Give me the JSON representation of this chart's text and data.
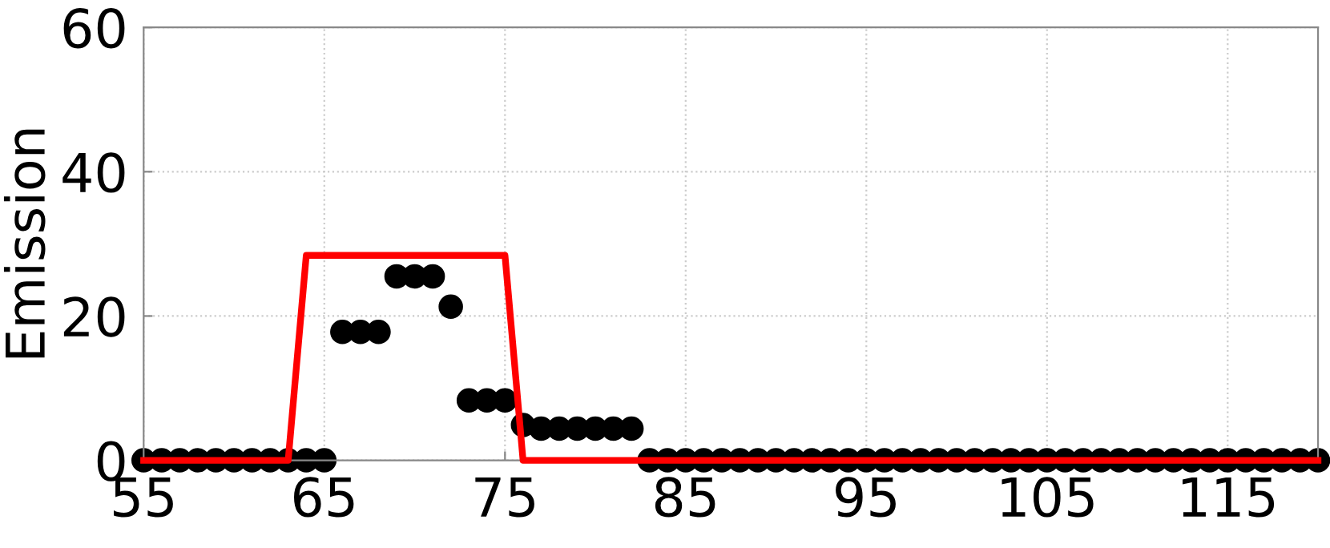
{
  "chart_data": {
    "type": "scatter",
    "ylabel": "Emission",
    "xlim": [
      55,
      120
    ],
    "ylim": [
      0,
      60
    ],
    "xticks": [
      55,
      65,
      75,
      85,
      95,
      105,
      115
    ],
    "yticks": [
      0,
      20,
      40,
      60
    ],
    "grid": true,
    "series": [
      {
        "color": "#000000",
        "marker": "circle",
        "x": [
          55,
          56,
          57,
          58,
          59,
          60,
          61,
          62,
          63,
          64,
          65,
          66,
          67,
          68,
          69,
          70,
          71,
          72,
          73,
          74,
          75,
          76,
          77,
          78,
          79,
          80,
          81,
          82,
          83,
          84,
          85,
          86,
          87,
          88,
          89,
          90,
          91,
          92,
          93,
          94,
          95,
          96,
          97,
          98,
          99,
          100,
          101,
          102,
          103,
          104,
          105,
          106,
          107,
          108,
          109,
          110,
          111,
          112,
          113,
          114,
          115,
          116,
          117,
          118,
          119,
          120
        ],
        "values": [
          0,
          0,
          0,
          0,
          0,
          0,
          0,
          0,
          0,
          0,
          0,
          17.8,
          17.8,
          17.8,
          25.5,
          25.5,
          25.5,
          21.3,
          8.3,
          8.3,
          8.3,
          4.9,
          4.4,
          4.4,
          4.4,
          4.4,
          4.4,
          4.4,
          0,
          0,
          0,
          0,
          0,
          0,
          0,
          0,
          0,
          0,
          0,
          0,
          0,
          0,
          0,
          0,
          0,
          0,
          0,
          0,
          0,
          0,
          0,
          0,
          0,
          0,
          0,
          0,
          0,
          0,
          0,
          0,
          0,
          0,
          0,
          0,
          0,
          0
        ]
      },
      {
        "type": "line",
        "color": "#ff0000",
        "line_style": "solid",
        "x": [
          55,
          63,
          64,
          75,
          76,
          120
        ],
        "values": [
          0,
          0,
          28.4,
          28.4,
          0,
          0
        ]
      }
    ]
  }
}
